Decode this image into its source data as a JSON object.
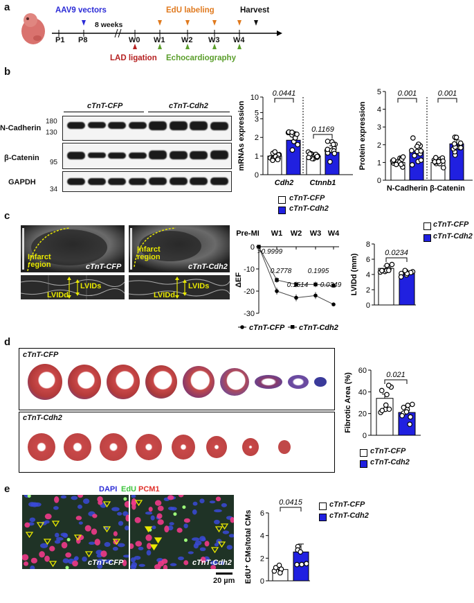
{
  "panels": {
    "a": "a",
    "b": "b",
    "c": "c",
    "d": "d",
    "e": "e"
  },
  "panel_a": {
    "vectors": "AAV9 vectors",
    "weeks": "8 weeks",
    "edu": "EdU labeling",
    "harvest": "Harvest",
    "timepoints": [
      "P1",
      "P8",
      "W0",
      "W1",
      "W2",
      "W3",
      "W4"
    ],
    "lad": "LAD ligation",
    "echo": "Echocardiography",
    "colors": {
      "vectors": "#2b2bd6",
      "edu": "#e07a1f",
      "lad": "#b52020",
      "echo": "#5a9e2b"
    }
  },
  "panel_b": {
    "groups": [
      "cTnT-CFP",
      "cTnT-Cdh2"
    ],
    "rows": [
      "N-Cadherin",
      "β-Catenin",
      "GAPDH"
    ],
    "mw": [
      "180",
      "130",
      "95",
      "34"
    ],
    "legend": {
      "cfp": "cTnT-CFP",
      "cdh2": "cTnT-Cdh2"
    }
  },
  "panel_c": {
    "infarct1": "Infarct region",
    "infarct2": "Infarct region",
    "cfp": "cTnT-CFP",
    "cdh2": "cTnT-Cdh2",
    "lvids": "LVIDs",
    "lvidd": "LVIDd",
    "legend": {
      "cfp": "cTnT-CFP",
      "cdh2": "cTnT-Cdh2"
    }
  },
  "panel_d": {
    "cfp": "cTnT-CFP",
    "cdh2": "cTnT-Cdh2",
    "legend": {
      "cfp": "cTnT-CFP",
      "cdh2": "cTnT-Cdh2"
    }
  },
  "panel_e": {
    "dapi": "DAPI",
    "edu": "EdU",
    "pcm1": "PCM1",
    "cfp": "cTnT-CFP",
    "cdh2": "cTnT-Cdh2",
    "scale": "20 µm",
    "legend": {
      "cfp": "cTnT-CFP",
      "cdh2": "cTnT-Cdh2"
    }
  },
  "chart_data": [
    {
      "type": "bar",
      "id": "mrna",
      "ylabel": "mRNAs expression",
      "categories": [
        "Cdh2",
        "Ctnnb1"
      ],
      "series": [
        {
          "name": "cTnT-CFP",
          "values": [
            1.0,
            1.0
          ]
        },
        {
          "name": "cTnT-Cdh2",
          "values": [
            1.85,
            1.2
          ]
        }
      ],
      "pvalues": [
        "0.0441",
        "0.1169"
      ],
      "yticks": [
        "0",
        "1",
        "2",
        "3",
        "5",
        "10"
      ]
    },
    {
      "type": "bar",
      "id": "protein",
      "ylabel": "Protein expression",
      "categories": [
        "N-Cadherin",
        "β-Catenin"
      ],
      "series": [
        {
          "name": "cTnT-CFP",
          "values": [
            1.0,
            1.0
          ]
        },
        {
          "name": "cTnT-Cdh2",
          "values": [
            1.65,
            2.05
          ]
        }
      ],
      "pvalues": [
        "0.001",
        "0.001"
      ],
      "yticks": [
        "0",
        "1",
        "2",
        "3",
        "4",
        "5"
      ],
      "ylim": [
        0,
        5
      ]
    },
    {
      "type": "line",
      "id": "def",
      "ylabel": "ΔEF",
      "categories": [
        "Pre-MI",
        "W1",
        "W2",
        "W3",
        "W4"
      ],
      "series": [
        {
          "name": "cTnT-CFP",
          "values": [
            0,
            -20,
            -23,
            -22,
            -26
          ]
        },
        {
          "name": "cTnT-Cdh2",
          "values": [
            0,
            -15,
            -17,
            -17,
            -17.5
          ]
        }
      ],
      "pvalues": [
        ">0.9999",
        "0.2778",
        "0.1514",
        "0.1995",
        "0.0349"
      ],
      "yticks": [
        "0",
        "-10",
        "-20",
        "-30"
      ],
      "ylim": [
        -30,
        0
      ]
    },
    {
      "type": "bar",
      "id": "lvidd",
      "ylabel": "LVIDd (mm)",
      "series": [
        {
          "name": "cTnT-CFP",
          "values": [
            4.8
          ]
        },
        {
          "name": "cTnT-Cdh2",
          "values": [
            4.1
          ]
        }
      ],
      "pvalues": [
        "0.0234"
      ],
      "yticks": [
        "0",
        "2",
        "4",
        "6",
        "8"
      ],
      "ylim": [
        0,
        8
      ]
    },
    {
      "type": "bar",
      "id": "fibrotic",
      "ylabel": "Fibrotic Area (%)",
      "series": [
        {
          "name": "cTnT-CFP",
          "values": [
            34
          ]
        },
        {
          "name": "cTnT-Cdh2",
          "values": [
            21
          ]
        }
      ],
      "pvalues": [
        "0.021"
      ],
      "yticks": [
        "0",
        "20",
        "40",
        "60"
      ],
      "ylim": [
        0,
        60
      ]
    },
    {
      "type": "bar",
      "id": "edu",
      "ylabel": "EdU⁺ CMs/total CMs",
      "series": [
        {
          "name": "cTnT-CFP",
          "values": [
            1.0
          ]
        },
        {
          "name": "cTnT-Cdh2",
          "values": [
            2.55
          ]
        }
      ],
      "pvalues": [
        "0.0415"
      ],
      "yticks": [
        "0",
        "2",
        "4",
        "6"
      ],
      "ylim": [
        0,
        6
      ]
    }
  ]
}
